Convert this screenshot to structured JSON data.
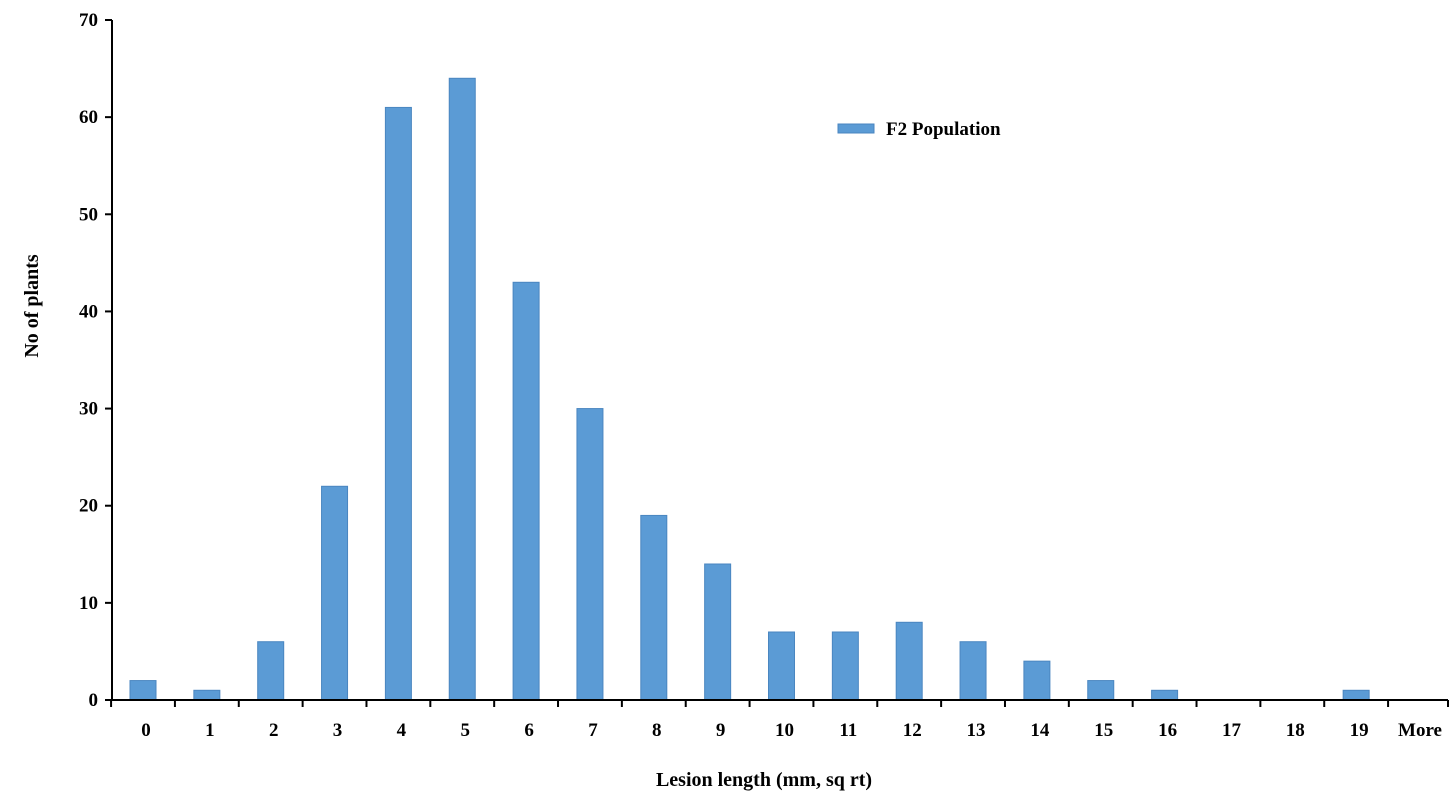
{
  "chart_data": {
    "type": "bar",
    "categories": [
      "0",
      "1",
      "2",
      "3",
      "4",
      "5",
      "6",
      "7",
      "8",
      "9",
      "10",
      "11",
      "12",
      "13",
      "14",
      "15",
      "16",
      "17",
      "18",
      "19",
      "More"
    ],
    "series": [
      {
        "name": "F2 Population",
        "color": "#5B9BD5",
        "values": [
          2,
          1,
          6,
          22,
          61,
          64,
          43,
          30,
          19,
          14,
          7,
          7,
          8,
          6,
          4,
          2,
          1,
          0,
          0,
          1,
          0
        ]
      }
    ],
    "xlabel": "Lesion length (mm, sq rt)",
    "ylabel": "No of plants",
    "ylim": [
      0,
      70
    ],
    "yticks": [
      0,
      10,
      20,
      30,
      40,
      50,
      60,
      70
    ],
    "grid": false,
    "legend_position": "top-right"
  }
}
